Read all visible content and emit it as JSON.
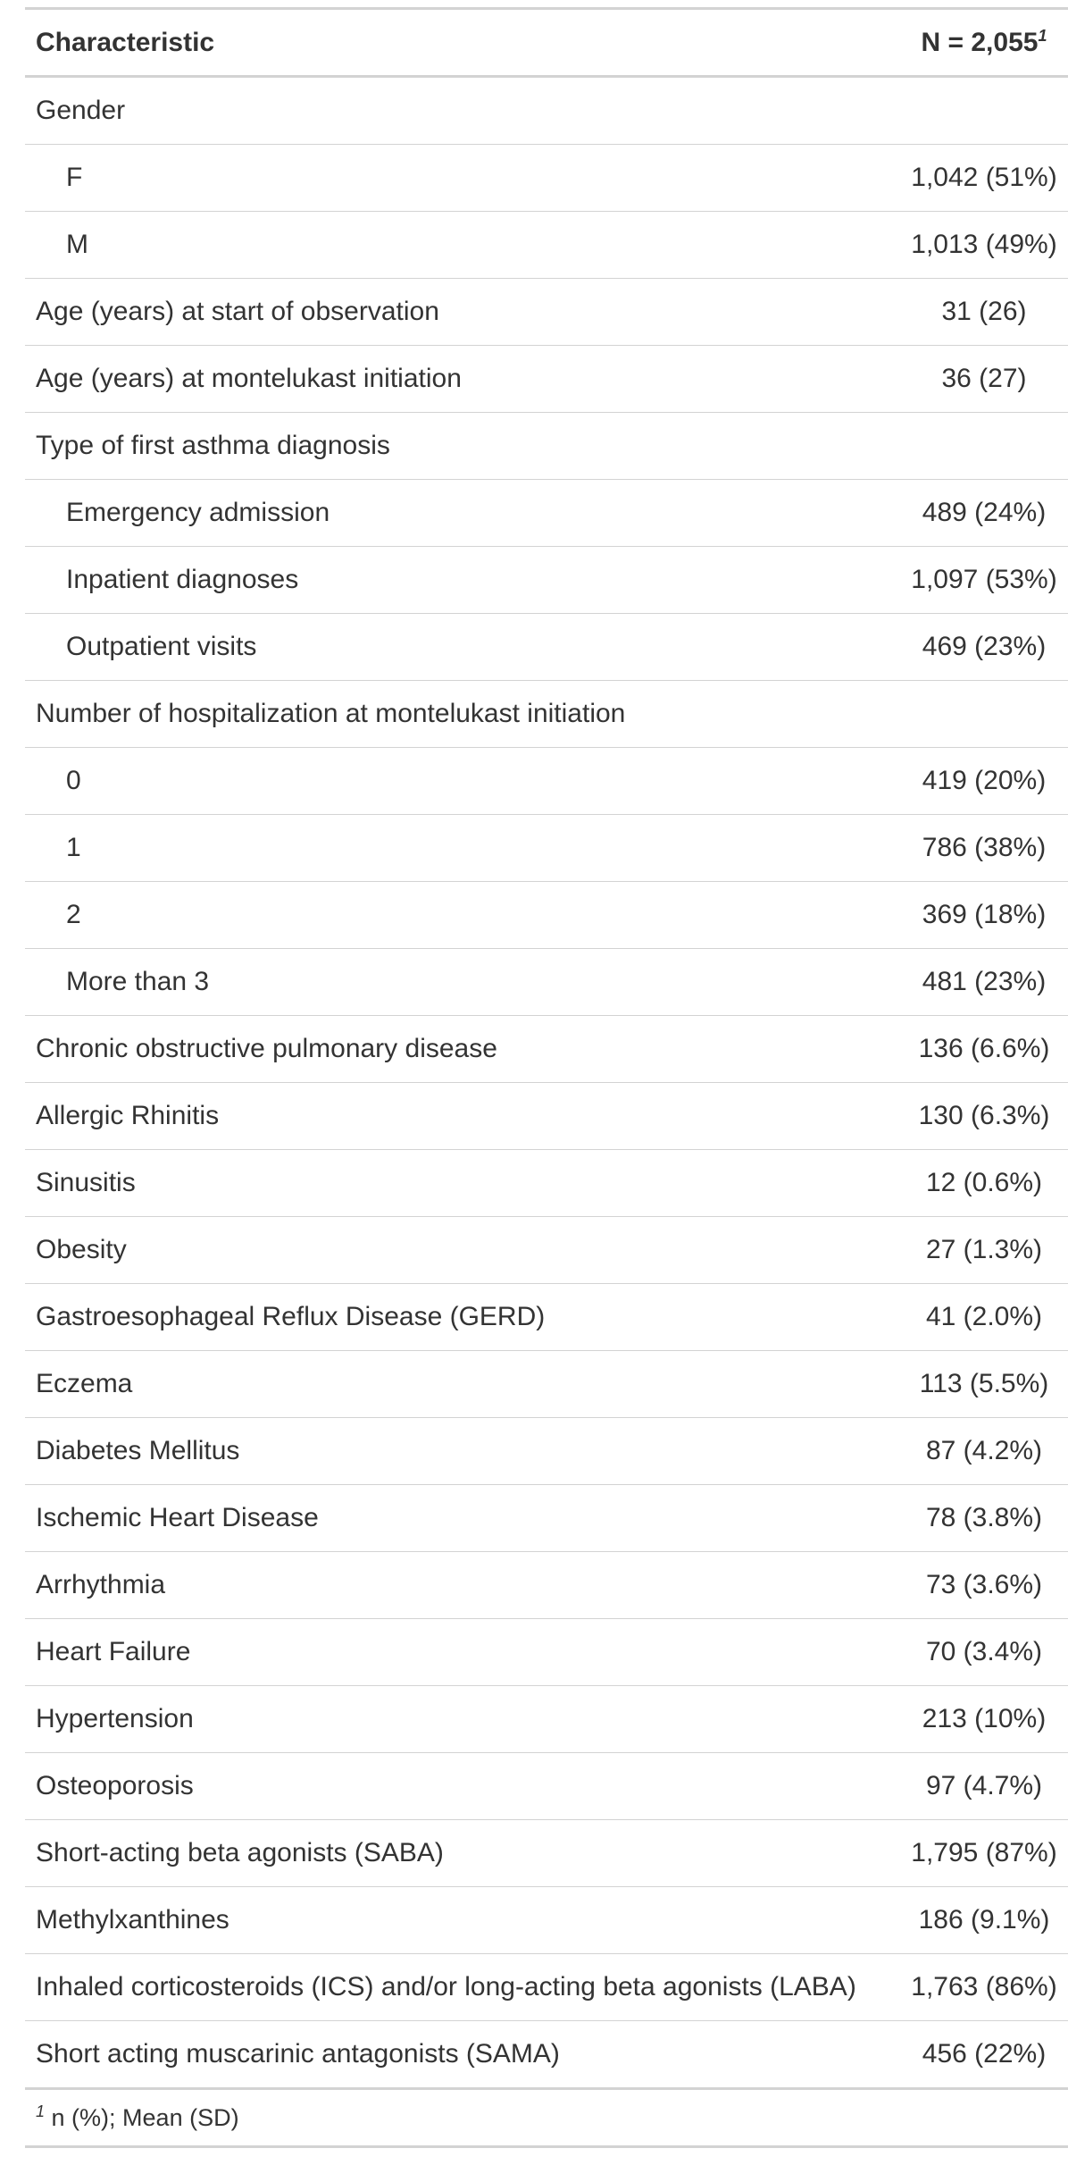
{
  "header": {
    "characteristic": "Characteristic",
    "n_label": "N = 2,055",
    "n_footnote_mark": "1"
  },
  "rows": [
    {
      "label": "Gender",
      "value": "",
      "indent": false
    },
    {
      "label": "F",
      "value": "1,042 (51%)",
      "indent": true
    },
    {
      "label": "M",
      "value": "1,013 (49%)",
      "indent": true
    },
    {
      "label": "Age (years) at start of observation",
      "value": "31 (26)",
      "indent": false
    },
    {
      "label": "Age (years) at montelukast initiation",
      "value": "36 (27)",
      "indent": false
    },
    {
      "label": "Type of first asthma diagnosis",
      "value": "",
      "indent": false
    },
    {
      "label": "Emergency admission",
      "value": "489 (24%)",
      "indent": true
    },
    {
      "label": "Inpatient diagnoses",
      "value": "1,097 (53%)",
      "indent": true
    },
    {
      "label": "Outpatient visits",
      "value": "469 (23%)",
      "indent": true
    },
    {
      "label": "Number of hospitalization at montelukast initiation",
      "value": "",
      "indent": false
    },
    {
      "label": "0",
      "value": "419 (20%)",
      "indent": true
    },
    {
      "label": "1",
      "value": "786 (38%)",
      "indent": true
    },
    {
      "label": "2",
      "value": "369 (18%)",
      "indent": true
    },
    {
      "label": "More than 3",
      "value": "481 (23%)",
      "indent": true
    },
    {
      "label": "Chronic obstructive pulmonary disease",
      "value": "136 (6.6%)",
      "indent": false
    },
    {
      "label": "Allergic Rhinitis",
      "value": "130 (6.3%)",
      "indent": false
    },
    {
      "label": "Sinusitis",
      "value": "12 (0.6%)",
      "indent": false
    },
    {
      "label": "Obesity",
      "value": "27 (1.3%)",
      "indent": false
    },
    {
      "label": "Gastroesophageal Reflux Disease (GERD)",
      "value": "41 (2.0%)",
      "indent": false
    },
    {
      "label": "Eczema",
      "value": "113 (5.5%)",
      "indent": false
    },
    {
      "label": "Diabetes Mellitus",
      "value": "87 (4.2%)",
      "indent": false
    },
    {
      "label": "Ischemic Heart Disease",
      "value": "78 (3.8%)",
      "indent": false
    },
    {
      "label": "Arrhythmia",
      "value": "73 (3.6%)",
      "indent": false
    },
    {
      "label": "Heart Failure",
      "value": "70 (3.4%)",
      "indent": false
    },
    {
      "label": "Hypertension",
      "value": "213 (10%)",
      "indent": false
    },
    {
      "label": "Osteoporosis",
      "value": "97 (4.7%)",
      "indent": false
    },
    {
      "label": "Short-acting beta agonists (SABA)",
      "value": "1,795 (87%)",
      "indent": false
    },
    {
      "label": "Methylxanthines",
      "value": "186 (9.1%)",
      "indent": false
    },
    {
      "label": "Inhaled corticosteroids (ICS) and/or long-acting beta agonists (LABA)",
      "value": "1,763 (86%)",
      "indent": false
    },
    {
      "label": "Short acting muscarinic antagonists (SAMA)",
      "value": "456 (22%)",
      "indent": false
    }
  ],
  "footnote": {
    "mark": "1",
    "text": "n (%); Mean (SD)"
  }
}
